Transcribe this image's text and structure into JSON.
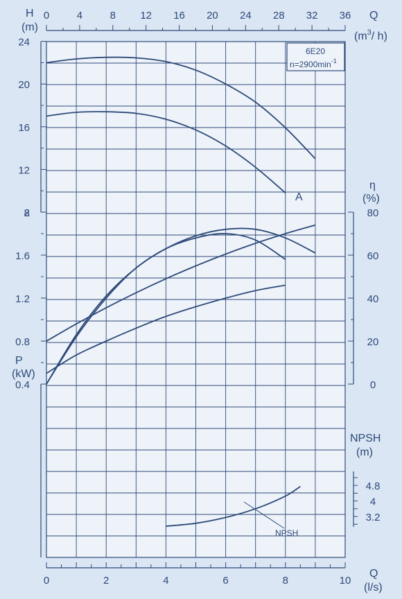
{
  "colors": {
    "background": "#dbe6f4",
    "ink": "#2d4978",
    "plot_area": "#eef3fa"
  },
  "chart_data": {
    "type": "line",
    "title_box": {
      "model": "6E20",
      "speed_text": "n=2900min",
      "speed_exp": "-1"
    },
    "axes": {
      "q_flow_ls": {
        "label": "Q",
        "unit": "(l/s)",
        "range": [
          0,
          10
        ],
        "ticks": [
          "0",
          "2",
          "4",
          "6",
          "8",
          "10"
        ]
      },
      "q_flow_m3h": {
        "label": "Q",
        "unit_base": "(m",
        "unit_sup": "3",
        "unit_tail": "/ h)",
        "range": [
          0,
          36
        ],
        "ticks": [
          "0",
          "4",
          "8",
          "12",
          "16",
          "20",
          "24",
          "28",
          "32",
          "36"
        ]
      },
      "head": {
        "label": "H",
        "unit": "(m)",
        "range": [
          8,
          24
        ],
        "ticks": [
          "24",
          "20",
          "16",
          "12",
          "8"
        ]
      },
      "efficiency": {
        "label": "η",
        "unit": "(%)",
        "range": [
          0,
          80
        ],
        "ticks": [
          "80",
          "60",
          "40",
          "20",
          "0"
        ]
      },
      "power": {
        "label": "P",
        "unit": "(kW)",
        "range": [
          0.4,
          2
        ],
        "ticks": [
          "2",
          "1.6",
          "1.2",
          "0.8",
          "0.4"
        ]
      },
      "npsh": {
        "label": "NPSH",
        "unit": "(m)",
        "ticks": [
          "4.8",
          "4",
          "3.2"
        ],
        "tick_values": [
          4.8,
          4,
          3.2
        ]
      }
    },
    "series": [
      {
        "name": "H",
        "panel": "head",
        "x": [
          0,
          1,
          2,
          3,
          4,
          5,
          6,
          7,
          8,
          9
        ],
        "y": [
          22,
          22.35,
          22.5,
          22.45,
          22.1,
          21.3,
          20.0,
          18.3,
          15.9,
          13.0
        ]
      },
      {
        "name": "A",
        "panel": "head",
        "x": [
          0,
          1,
          2,
          3,
          4,
          5,
          6,
          7,
          8
        ],
        "y": [
          17,
          17.35,
          17.4,
          17.25,
          16.7,
          15.7,
          14.2,
          12.2,
          9.8
        ]
      },
      {
        "panel": "efficiency",
        "x": [
          0,
          1,
          2,
          3,
          4,
          5,
          6,
          7,
          8,
          9
        ],
        "y": [
          0,
          22,
          40,
          54,
          63,
          69,
          72,
          72,
          68,
          61
        ]
      },
      {
        "panel": "efficiency",
        "x": [
          0,
          1,
          2,
          3,
          4,
          5,
          6,
          7,
          8
        ],
        "y": [
          0,
          23,
          41,
          54,
          63,
          68,
          70,
          67,
          58
        ]
      },
      {
        "panel": "power",
        "x": [
          0,
          1,
          2,
          3,
          4,
          5,
          6,
          7,
          8,
          9
        ],
        "y": [
          0.8,
          0.96,
          1.11,
          1.25,
          1.38,
          1.5,
          1.61,
          1.71,
          1.8,
          1.88
        ]
      },
      {
        "panel": "power",
        "x": [
          0,
          1,
          2,
          3,
          4,
          5,
          6,
          7,
          8
        ],
        "y": [
          0.5,
          0.67,
          0.8,
          0.92,
          1.03,
          1.12,
          1.2,
          1.27,
          1.32
        ]
      },
      {
        "name": "NPSH",
        "panel": "npsh",
        "x": [
          4,
          5,
          6,
          7,
          8,
          8.5
        ],
        "y": [
          2.7,
          2.85,
          3.15,
          3.6,
          4.25,
          4.75
        ]
      }
    ],
    "annotations": {
      "curve_label_A": "A",
      "npsh_label": "NPSH"
    },
    "grid": true
  }
}
